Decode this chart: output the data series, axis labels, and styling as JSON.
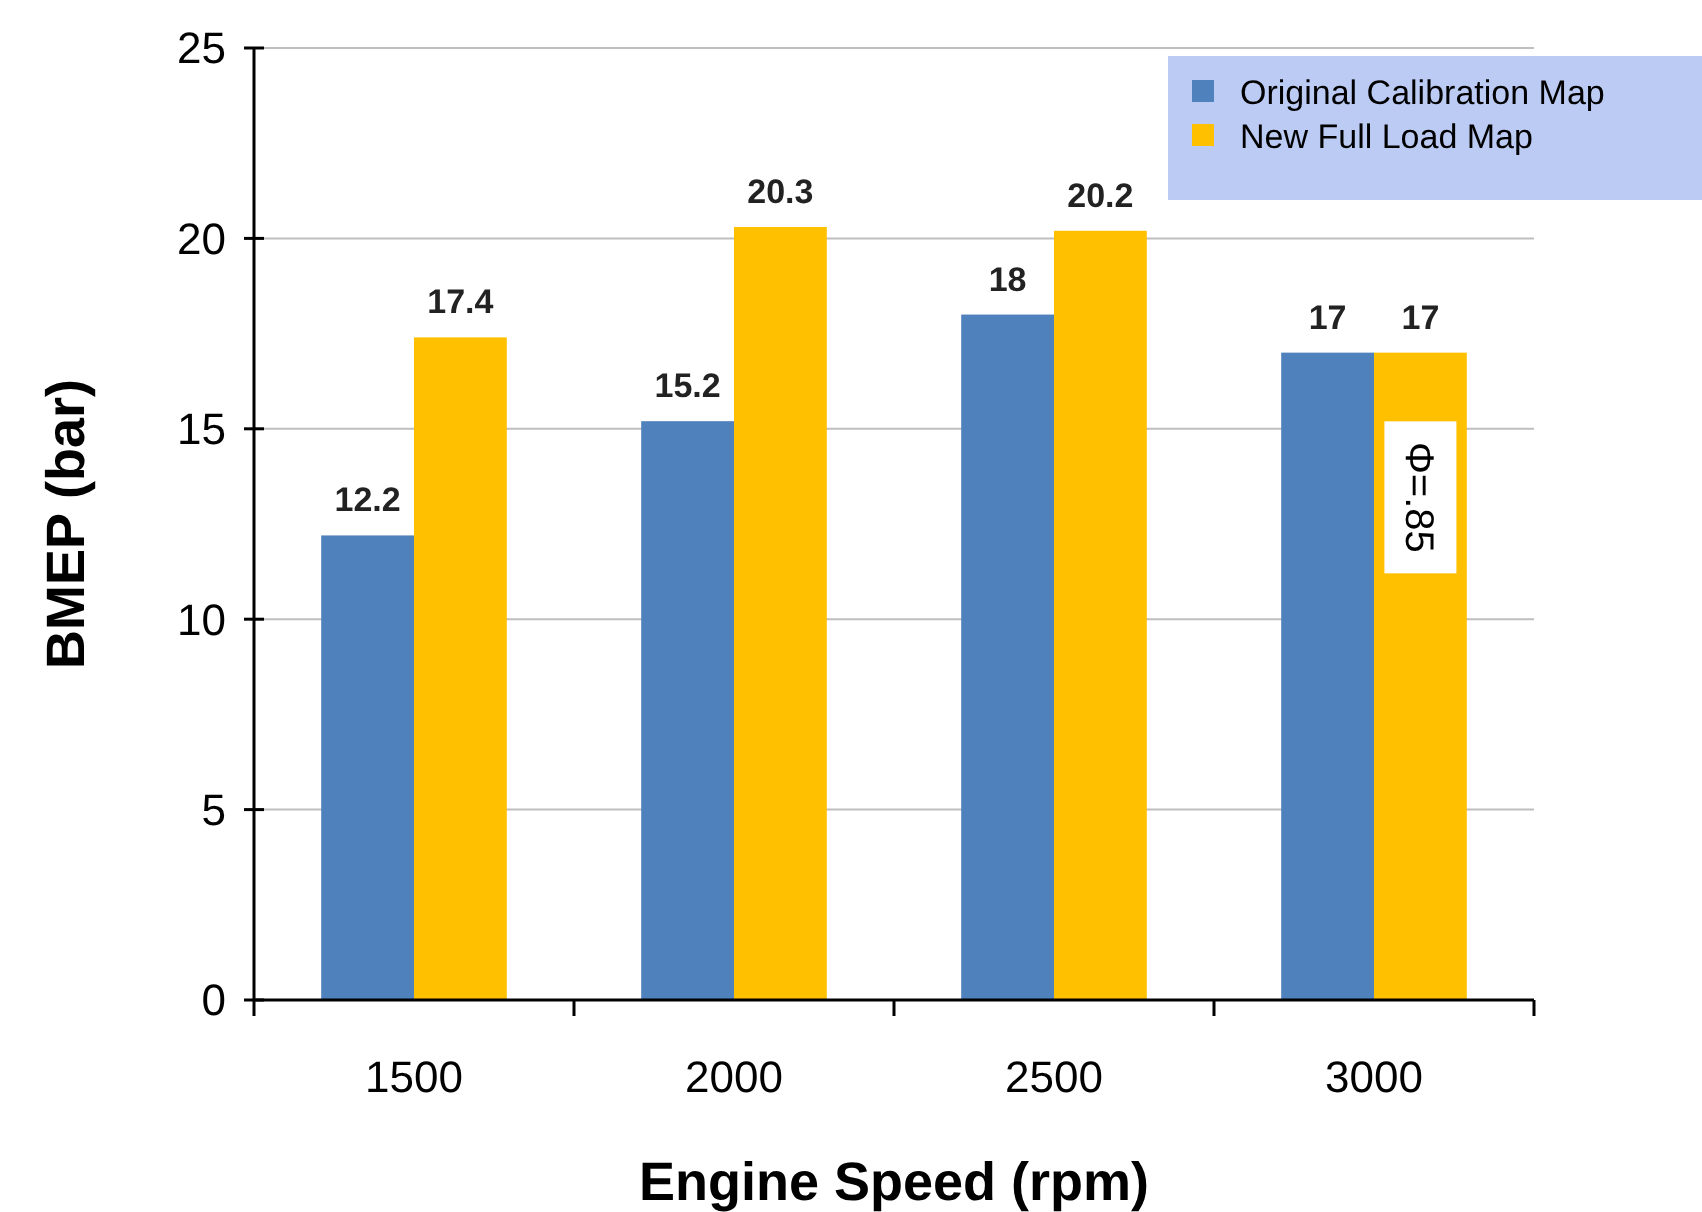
{
  "chart_data": {
    "type": "bar",
    "xlabel": "Engine Speed (rpm)",
    "ylabel": "BMEP (bar)",
    "categories": [
      "1500",
      "2000",
      "2500",
      "3000"
    ],
    "series": [
      {
        "name": "Original Calibration Map",
        "color": "#4f81bd",
        "values": [
          12.2,
          15.2,
          18,
          17
        ]
      },
      {
        "name": "New Full Load Map",
        "color": "#ffc000",
        "values": [
          17.4,
          20.3,
          20.2,
          17
        ]
      }
    ],
    "ylim": [
      0,
      25
    ],
    "yticks": [
      0,
      5,
      10,
      15,
      20,
      25
    ],
    "grid": "y",
    "legend": "top right",
    "data_labels": true,
    "annotations": [
      {
        "text": "Φ=.85",
        "x": "3000",
        "y": 13.2
      }
    ]
  }
}
